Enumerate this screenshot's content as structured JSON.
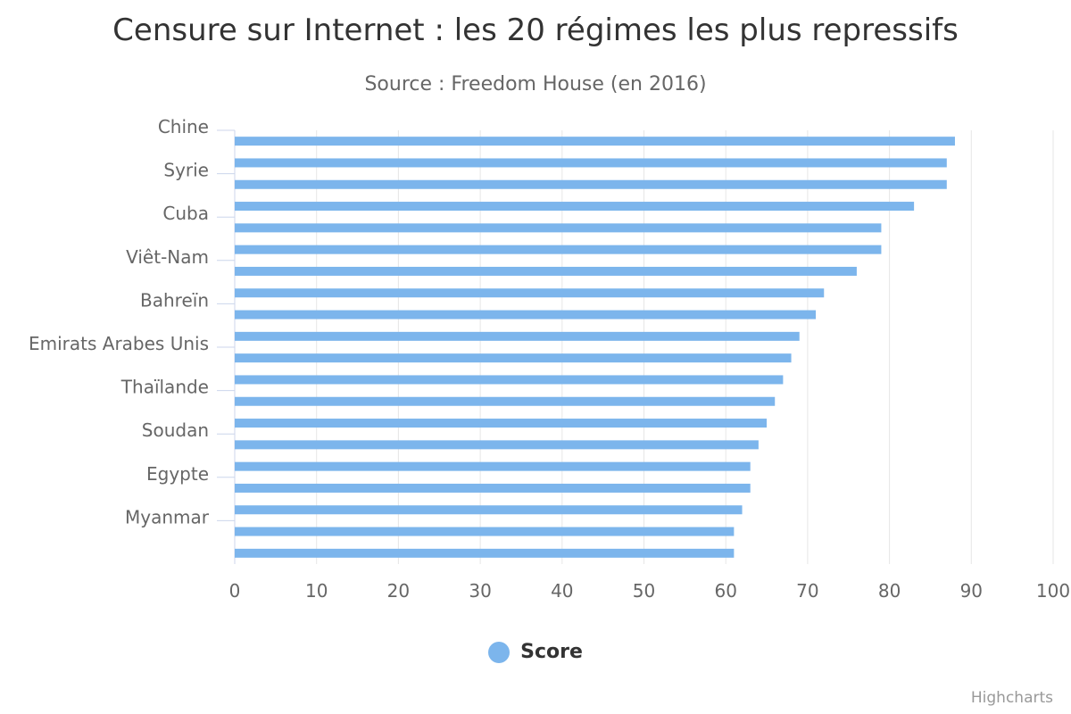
{
  "chart_data": {
    "type": "bar",
    "orientation": "horizontal",
    "title": "Censure sur Internet : les 20 régimes les plus repressifs",
    "subtitle": "Source : Freedom House (en 2016)",
    "categories": [
      "Chine",
      "",
      "Syrie",
      "",
      "Cuba",
      "",
      "Viêt-Nam",
      "",
      "Bahreïn",
      "",
      "Emirats Arabes Unis",
      "",
      "Thaïlande",
      "",
      "Soudan",
      "",
      "Egypte",
      "",
      "Myanmar",
      ""
    ],
    "series": [
      {
        "name": "Score",
        "values": [
          88,
          87,
          87,
          83,
          79,
          79,
          76,
          72,
          71,
          69,
          68,
          67,
          66,
          65,
          64,
          63,
          63,
          62,
          61,
          61
        ]
      }
    ],
    "xlim": [
      0,
      100
    ],
    "ticks": [
      "0",
      "10",
      "20",
      "30",
      "40",
      "50",
      "60",
      "70",
      "80",
      "90",
      "100"
    ],
    "grid": true,
    "legend_position": "bottom-center"
  },
  "colors": {
    "bar": "#7cb5ec",
    "grid": "#e6e6e6",
    "axis": "#ccd6eb",
    "label": "#666666"
  },
  "credits": "Highcharts"
}
